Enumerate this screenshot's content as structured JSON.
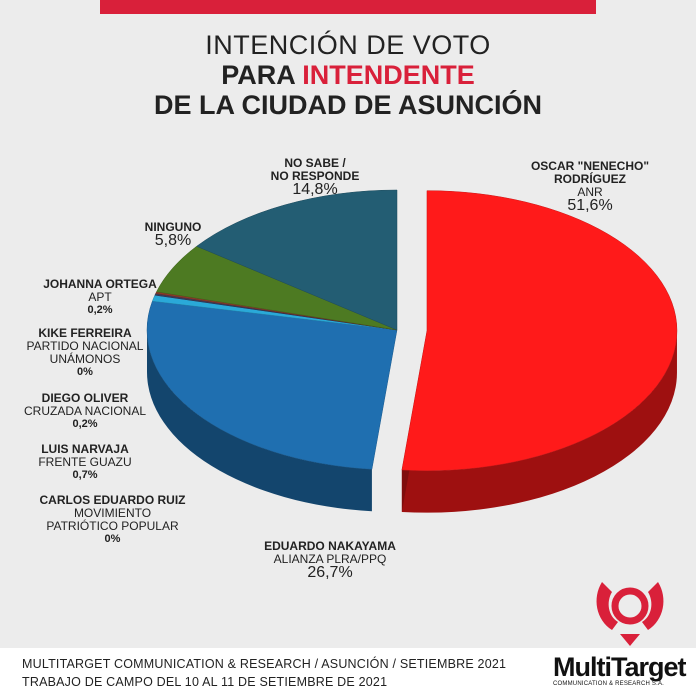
{
  "title": {
    "line1": "INTENCIÓN DE VOTO",
    "line2_prefix": "PARA ",
    "line2_highlight": "INTENDENTE",
    "line3": "DE LA CIUDAD DE ASUNCIÓN"
  },
  "colors": {
    "accent": "#d9203a",
    "nenecho": "#ff1a1a",
    "nakayama": "#1f6fb0",
    "ninguno": "#4d7a22",
    "no_sabe": "#235d73",
    "ortega": "#8b3a2a",
    "narvaja": "#2aa9d8",
    "oliver": "#3a3a5a"
  },
  "labels": {
    "nenecho": {
      "name1": "OSCAR \"NENECHO\"",
      "name2": "RODRÍGUEZ",
      "party": "ANR",
      "pct": "51,6%"
    },
    "nakayama": {
      "name": "EDUARDO NAKAYAMA",
      "party": "ALIANZA PLRA/PPQ",
      "pct": "26,7%"
    },
    "no_sabe": {
      "name1": "NO SABE /",
      "name2": "NO RESPONDE",
      "pct": "14,8%"
    },
    "ninguno": {
      "name": "NINGUNO",
      "pct": "5,8%"
    },
    "ortega": {
      "name": "JOHANNA ORTEGA",
      "party": "APT",
      "pct": "0,2%"
    },
    "ferreira": {
      "name": "KIKE FERREIRA",
      "party1": "PARTIDO NACIONAL",
      "party2": "UNÁMONOS",
      "pct": "0%"
    },
    "oliver": {
      "name": "DIEGO OLIVER",
      "party": "CRUZADA NACIONAL",
      "pct": "0,2%"
    },
    "narvaja": {
      "name": "LUIS NARVAJA",
      "party": "FRENTE GUAZU",
      "pct": "0,7%"
    },
    "ruiz": {
      "name": "CARLOS EDUARDO RUIZ",
      "party1": "MOVIMIENTO",
      "party2": "PATRIÓTICO POPULAR",
      "pct": "0%"
    }
  },
  "chart_data": {
    "type": "pie",
    "title": "INTENCIÓN DE VOTO PARA INTENDENTE DE LA CIUDAD DE ASUNCIÓN",
    "slices": [
      {
        "label": "OSCAR \"NENECHO\" RODRÍGUEZ",
        "party": "ANR",
        "value": 51.6
      },
      {
        "label": "EDUARDO NAKAYAMA",
        "party": "ALIANZA PLRA/PPQ",
        "value": 26.7
      },
      {
        "label": "CARLOS EDUARDO RUIZ",
        "party": "MOVIMIENTO PATRIÓTICO POPULAR",
        "value": 0
      },
      {
        "label": "LUIS NARVAJA",
        "party": "FRENTE GUAZU",
        "value": 0.7
      },
      {
        "label": "DIEGO OLIVER",
        "party": "CRUZADA NACIONAL",
        "value": 0.2
      },
      {
        "label": "KIKE FERREIRA",
        "party": "PARTIDO NACIONAL UNÁMONOS",
        "value": 0
      },
      {
        "label": "JOHANNA ORTEGA",
        "party": "APT",
        "value": 0.2
      },
      {
        "label": "NINGUNO",
        "value": 5.8
      },
      {
        "label": "NO SABE / NO RESPONDE",
        "value": 14.8
      }
    ]
  },
  "footer": {
    "line1": "MULTITARGET COMMUNICATION & RESEARCH / ASUNCIÓN / SETIEMBRE 2021",
    "line2": "TRABAJO DE CAMPO DEL 10 AL 11 DE SETIEMBRE DE 2021"
  },
  "logo": {
    "name": "MultiTarget",
    "subtitle": "COMMUNICATION & RESEARCH S.A."
  }
}
